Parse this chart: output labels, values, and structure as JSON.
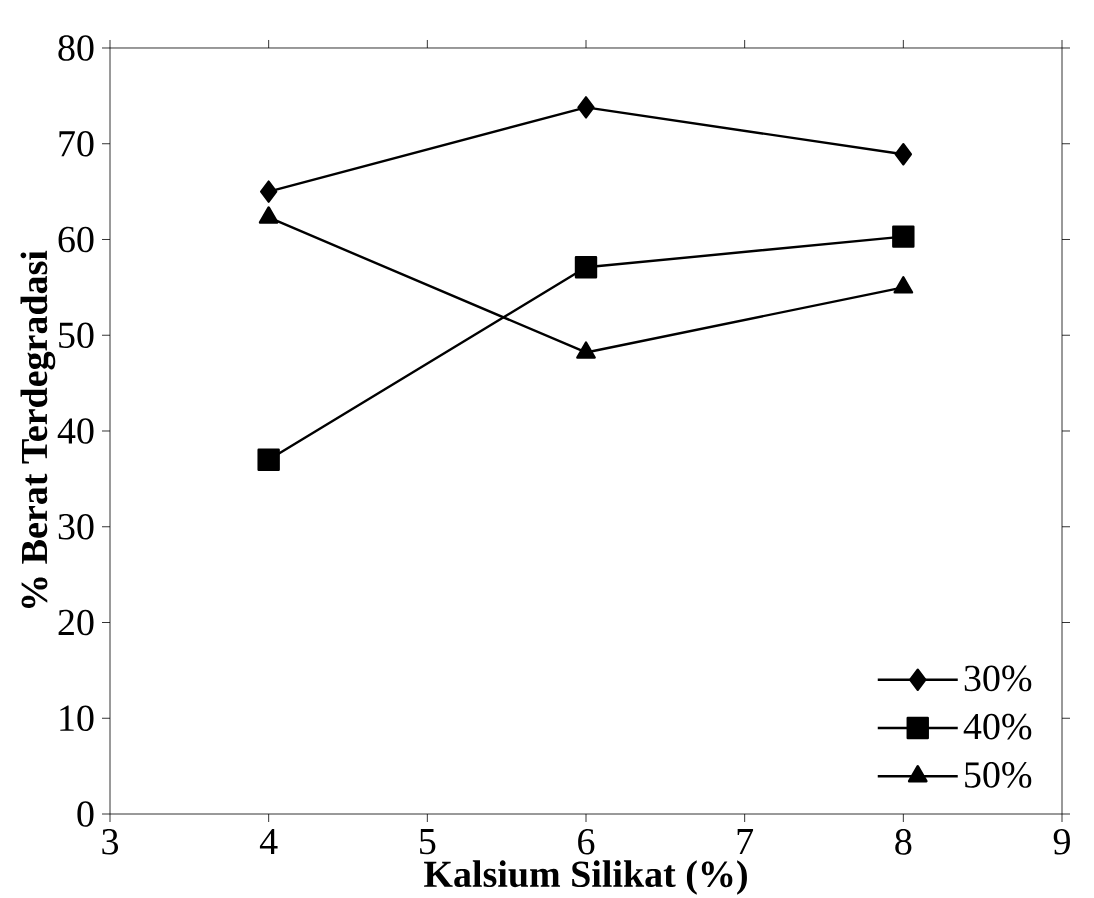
{
  "chart_data": {
    "type": "line",
    "xlabel": "Kalsium Silikat (%)",
    "ylabel": "% Berat Terdegradasi",
    "xlim": [
      3,
      9
    ],
    "xticks": [
      3,
      4,
      5,
      6,
      7,
      8,
      9
    ],
    "ylim": [
      0,
      80
    ],
    "yticks": [
      0,
      10,
      20,
      30,
      40,
      50,
      60,
      70,
      80
    ],
    "x": [
      4,
      6,
      8
    ],
    "series": [
      {
        "name": "30%",
        "color": "#000000",
        "marker": "diamond",
        "values": [
          65,
          73.8,
          68.9
        ]
      },
      {
        "name": "40%",
        "color": "#000000",
        "marker": "square",
        "values": [
          37,
          57.1,
          60.3
        ]
      },
      {
        "name": "50%",
        "color": "#000000",
        "marker": "triangle",
        "values": [
          62.3,
          48.2,
          55
        ]
      }
    ],
    "grid": false,
    "legend": "bottom right",
    "line_style": "solid"
  }
}
